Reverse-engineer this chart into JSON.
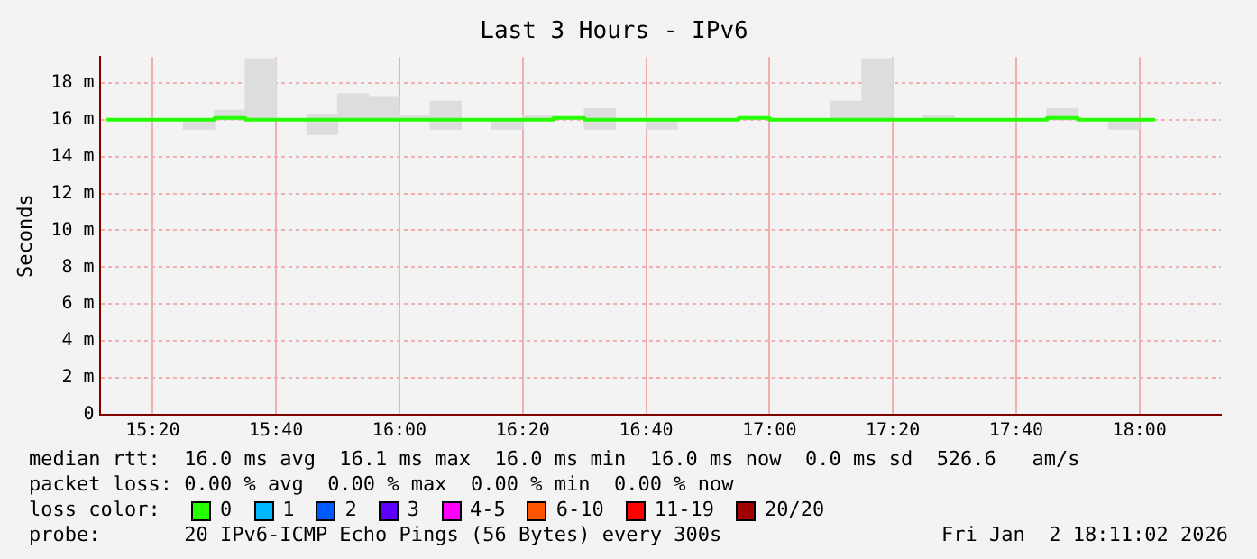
{
  "chart_data": {
    "type": "bar",
    "title": "Last 3 Hours - IPv6",
    "ylabel": "Seconds",
    "x": [
      15.2083,
      15.2917,
      15.375,
      15.4583,
      15.5417,
      15.625,
      15.7083,
      15.7917,
      15.875,
      15.9583,
      16.0417,
      16.125,
      16.2083,
      16.2917,
      16.375,
      16.4583,
      16.5417,
      16.625,
      16.7083,
      16.7917,
      16.875,
      16.9583,
      17.0417,
      17.125,
      17.2083,
      17.2917,
      17.375,
      17.4583,
      17.5417,
      17.625,
      17.7083,
      17.7917,
      17.875,
      17.9583,
      18.0417
    ],
    "xlim": [
      15.19,
      18.22
    ],
    "xticks": [
      {
        "value": 15.333333,
        "label": "15:20"
      },
      {
        "value": 15.666667,
        "label": "15:40"
      },
      {
        "value": 16,
        "label": "16:00"
      },
      {
        "value": 16.333333,
        "label": "16:20"
      },
      {
        "value": 16.666667,
        "label": "16:40"
      },
      {
        "value": 17,
        "label": "17:00"
      },
      {
        "value": 17.333333,
        "label": "17:20"
      },
      {
        "value": 17.666667,
        "label": "17:40"
      },
      {
        "value": 18,
        "label": "18:00"
      }
    ],
    "ylim": [
      0,
      19.4
    ],
    "yticks": [
      0,
      {
        "value": 2,
        "label": "2 m"
      },
      {
        "value": 4,
        "label": "4 m"
      },
      {
        "value": 6,
        "label": "6 m"
      },
      {
        "value": 8,
        "label": "8 m"
      },
      {
        "value": 10,
        "label": "10 m"
      },
      {
        "value": 12,
        "label": "12 m"
      },
      {
        "value": 14,
        "label": "14 m"
      },
      {
        "value": 16,
        "label": "16 m"
      },
      {
        "value": 18,
        "label": "18 m"
      }
    ],
    "grid": true,
    "legend": false,
    "series": [
      {
        "color": "#dddddd",
        "base": [
          null,
          null,
          null,
          15.5,
          16,
          16,
          null,
          15.2,
          16,
          16,
          16,
          15.5,
          null,
          15.5,
          16,
          null,
          15.5,
          null,
          15.5,
          null,
          null,
          null,
          null,
          null,
          16,
          16,
          null,
          16,
          null,
          null,
          null,
          16,
          null,
          15.5,
          null
        ],
        "values": [
          null,
          null,
          null,
          0.5,
          0.5,
          3.3,
          null,
          1.1,
          1.4,
          1.2,
          0.2,
          1.5,
          null,
          0.5,
          0.2,
          null,
          1.1,
          null,
          0.5,
          null,
          null,
          null,
          null,
          null,
          1,
          3.3,
          null,
          0.2,
          null,
          null,
          null,
          0.6,
          null,
          0.5,
          null
        ]
      },
      {
        "type": "step",
        "color": "#26ff00",
        "values": [
          16,
          16,
          16,
          16,
          16.1,
          16,
          16,
          16,
          16,
          16,
          16,
          16,
          16,
          16,
          16,
          16.1,
          16,
          16,
          16,
          16,
          16,
          16.1,
          16,
          16,
          16,
          16,
          16,
          16,
          16,
          16,
          16,
          16.1,
          16,
          16,
          16
        ]
      }
    ],
    "annotations": [
      "median rtt:  16.0 ms avg  16.1 ms max  16.0 ms min  16.0 ms now  0.0 ms sd  526.6   am/s",
      "packet loss: 0.00 % avg  0.00 % max  0.00 % min  0.00 % now",
      "loss color:",
      "0",
      "1",
      "2",
      "3",
      "4-5",
      "6-10",
      "11-19",
      "20/20",
      "probe:       20 IPv6-ICMP Echo Pings (56 Bytes) every 300s",
      "Fri Jan  2 18:11:02 2026"
    ]
  }
}
